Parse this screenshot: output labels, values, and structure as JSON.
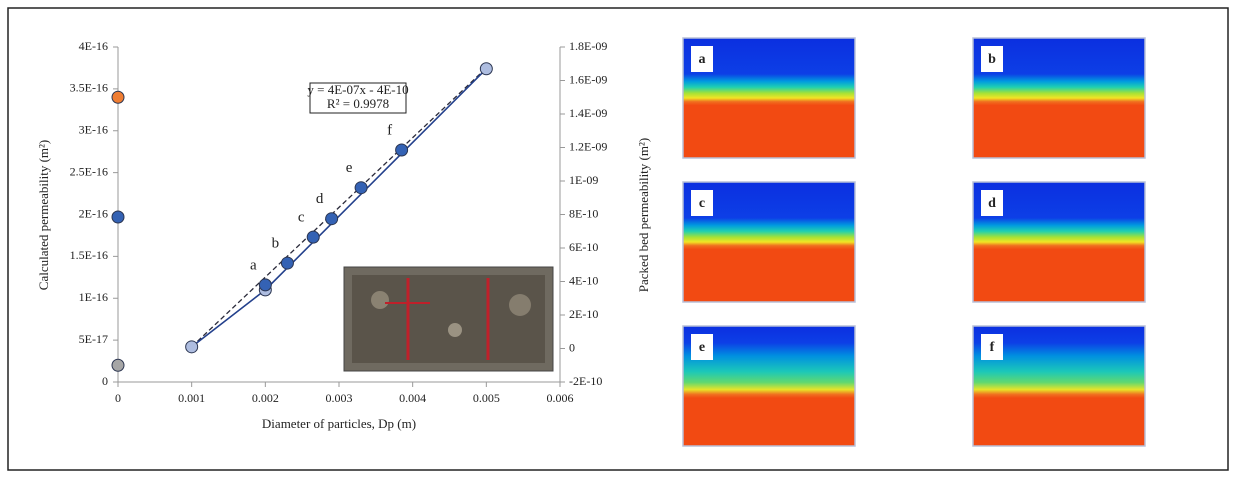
{
  "chart_data": {
    "type": "scatter",
    "xlabel": "Diameter of particles, Dp (m)",
    "ylabel": "Calculated permeability (m²)",
    "y2label": "Packed bed permeability (m²)",
    "xlim": [
      0,
      0.006
    ],
    "xticks": [
      0,
      0.001,
      0.002,
      0.003,
      0.004,
      0.005,
      0.006
    ],
    "ylim": [
      0,
      4e-16
    ],
    "yticks": [
      0,
      {
        "value": 5e-17,
        "label": "5E-17"
      },
      {
        "value": 1e-16,
        "label": "1E-16"
      },
      {
        "value": 1.5e-16,
        "label": "1.5E-16"
      },
      {
        "value": 2e-16,
        "label": "2E-16"
      },
      {
        "value": 2.5e-16,
        "label": "2.5E-16"
      },
      {
        "value": 3e-16,
        "label": "3E-16"
      },
      {
        "value": 3.5e-16,
        "label": "3.5E-16"
      },
      {
        "value": 4e-16,
        "label": "4E-16"
      }
    ],
    "y2lim": [
      -2e-10,
      1.8e-09
    ],
    "y2ticks": [
      {
        "value": -2e-10,
        "label": "-2E-10"
      },
      0,
      {
        "value": 2e-10,
        "label": "2E-10"
      },
      {
        "value": 4e-10,
        "label": "4E-10"
      },
      {
        "value": 6e-10,
        "label": "6E-10"
      },
      {
        "value": 8e-10,
        "label": "8E-10"
      },
      {
        "value": 1e-09,
        "label": "1E-09"
      },
      {
        "value": 1.2e-09,
        "label": "1.2E-09"
      },
      {
        "value": 1.4e-09,
        "label": "1.4E-09"
      },
      {
        "value": 1.6e-09,
        "label": "1.6E-09"
      },
      {
        "value": 1.8e-09,
        "label": "1.8E-09"
      }
    ],
    "equation": [
      "y = 4E-07x - 4E-10",
      "R² = 0.9978"
    ],
    "series": [
      {
        "axis": "y",
        "mode": "markers",
        "x": [
          0,
          0,
          0
        ],
        "values": [
          3.4e-16,
          1.97e-16,
          2e-17
        ],
        "colors": [
          "#ef7d32",
          "#3462b4",
          "#a6a6a6"
        ]
      },
      {
        "axis": "y",
        "mode": "dashed-line",
        "x": [
          0.001,
          0.005
        ],
        "values": [
          4.2e-17,
          3.75e-16
        ],
        "color": "#2a2a3a"
      },
      {
        "axis": "y2",
        "mode": "line+markers",
        "x": [
          0.001,
          0.002,
          0.005
        ],
        "values": [
          1e-11,
          3.5e-10,
          1.67e-09
        ],
        "color": "#aebde0",
        "line_color": "#23408c"
      },
      {
        "axis": "y",
        "mode": "markers",
        "x": [
          0.002,
          0.0023,
          0.00265,
          0.0029,
          0.0033,
          0.00385
        ],
        "values": [
          1.16e-16,
          1.42e-16,
          1.73e-16,
          1.95e-16,
          2.32e-16,
          2.77e-16
        ],
        "color": "#3462b4",
        "point_labels": [
          "a",
          "b",
          "c",
          "d",
          "e",
          "f"
        ]
      }
    ]
  },
  "panels": [
    "a",
    "b",
    "c",
    "d",
    "e",
    "f"
  ]
}
